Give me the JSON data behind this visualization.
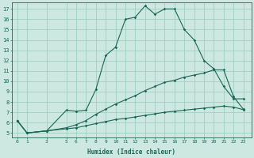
{
  "xlabel": "Humidex (Indice chaleur)",
  "bg_color": "#cce8e0",
  "grid_color": "#99ccbb",
  "line_color": "#1a6655",
  "xtick_labels": [
    "0",
    "1",
    "3",
    "5",
    "6",
    "7",
    "8",
    "9",
    "10",
    "11",
    "12",
    "13",
    "14",
    "15",
    "16",
    "17",
    "18",
    "19",
    "20",
    "21",
    "22",
    "23"
  ],
  "xtick_pos": [
    0,
    1,
    3,
    5,
    6,
    7,
    8,
    9,
    10,
    11,
    12,
    13,
    14,
    15,
    16,
    17,
    18,
    19,
    20,
    21,
    22,
    23
  ],
  "ytick_labels": [
    "5",
    "6",
    "7",
    "8",
    "9",
    "10",
    "11",
    "12",
    "13",
    "14",
    "15",
    "16",
    "17"
  ],
  "ytick_pos": [
    5,
    6,
    7,
    8,
    9,
    10,
    11,
    12,
    13,
    14,
    15,
    16,
    17
  ],
  "ylim": [
    4.6,
    17.6
  ],
  "xlim": [
    -0.5,
    23.8
  ],
  "line1_x": [
    0,
    1,
    3,
    5,
    6,
    7,
    8,
    9,
    10,
    11,
    12,
    13,
    14,
    15,
    16,
    17,
    18,
    19,
    20,
    21,
    22,
    23
  ],
  "line1_y": [
    6.2,
    5.0,
    5.2,
    7.2,
    7.1,
    7.2,
    9.2,
    12.5,
    13.3,
    16.0,
    16.2,
    17.3,
    16.5,
    17.0,
    17.0,
    15.0,
    14.0,
    12.0,
    11.2,
    9.5,
    8.3,
    8.3
  ],
  "line2_x": [
    0,
    1,
    3,
    5,
    6,
    7,
    8,
    9,
    10,
    11,
    12,
    13,
    14,
    15,
    16,
    17,
    18,
    19,
    20,
    21,
    22,
    23
  ],
  "line2_y": [
    6.2,
    5.0,
    5.2,
    5.5,
    5.8,
    6.2,
    6.8,
    7.3,
    7.8,
    8.2,
    8.6,
    9.1,
    9.5,
    9.9,
    10.1,
    10.4,
    10.6,
    10.8,
    11.1,
    11.1,
    8.5,
    7.3
  ],
  "line3_x": [
    0,
    1,
    3,
    5,
    6,
    7,
    8,
    9,
    10,
    11,
    12,
    13,
    14,
    15,
    16,
    17,
    18,
    19,
    20,
    21,
    22,
    23
  ],
  "line3_y": [
    6.2,
    5.0,
    5.2,
    5.4,
    5.5,
    5.7,
    5.9,
    6.1,
    6.3,
    6.4,
    6.55,
    6.7,
    6.85,
    7.0,
    7.1,
    7.2,
    7.3,
    7.4,
    7.5,
    7.6,
    7.5,
    7.25
  ]
}
